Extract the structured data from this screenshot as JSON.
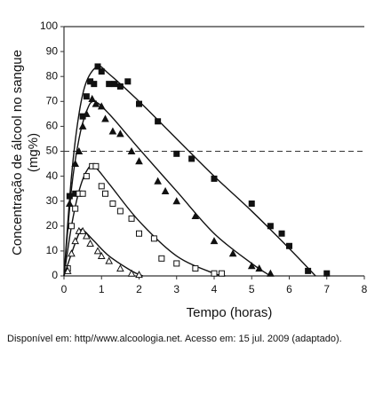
{
  "chart_data": {
    "type": "scatter-fit",
    "ylabel": [
      "Concentração de álcool no sangue",
      "(mg%)"
    ],
    "xlabel": "Tempo (horas)",
    "caption": "Disponível em: http//www.alcoologia.net. Acesso em: 15 jul. 2009 (adaptado).",
    "xlim": [
      0,
      8
    ],
    "xticks": [
      0,
      1,
      2,
      3,
      4,
      5,
      6,
      7,
      8
    ],
    "ylim": [
      0,
      100
    ],
    "yticks": [
      0,
      10,
      20,
      30,
      40,
      50,
      60,
      70,
      80,
      90,
      100
    ],
    "hline": 50,
    "hline_style": "dashed",
    "series": [
      {
        "marker": "square",
        "filled": true,
        "color": "#111111",
        "x": [
          0.15,
          0.3,
          0.5,
          0.6,
          0.7,
          0.8,
          0.9,
          1.0,
          1.2,
          1.35,
          1.5,
          1.7,
          2.0,
          2.5,
          3.0,
          3.4,
          4.0,
          5.0,
          5.5,
          5.8,
          6.0,
          6.5,
          7.0
        ],
        "values": [
          32,
          33,
          64,
          72,
          78,
          77,
          84,
          82,
          77,
          77,
          76,
          78,
          69,
          62,
          49,
          47,
          39,
          29,
          20,
          17,
          12,
          2,
          1
        ],
        "curve_x": [
          0,
          0.2,
          0.4,
          0.6,
          0.9,
          1.2,
          2,
          3,
          4,
          5,
          6,
          6.7
        ],
        "curve_values": [
          0,
          40,
          65,
          78,
          84,
          81,
          70,
          55,
          40,
          26,
          11,
          0
        ]
      },
      {
        "marker": "triangle",
        "filled": true,
        "color": "#111111",
        "x": [
          0.15,
          0.3,
          0.4,
          0.5,
          0.6,
          0.75,
          0.85,
          1.0,
          1.1,
          1.3,
          1.5,
          1.8,
          2.0,
          2.5,
          2.7,
          3.0,
          3.5,
          4.0,
          4.5,
          5.0,
          5.2,
          5.5
        ],
        "values": [
          29,
          45,
          50,
          60,
          65,
          71,
          69,
          68,
          63,
          58,
          57,
          50,
          46,
          38,
          34,
          30,
          24,
          14,
          9,
          4,
          3,
          1
        ],
        "curve_x": [
          0,
          0.2,
          0.4,
          0.6,
          0.8,
          1.2,
          2,
          3,
          4,
          5,
          5.5
        ],
        "curve_values": [
          0,
          35,
          55,
          66,
          70,
          65,
          51,
          34,
          17,
          5,
          0
        ]
      },
      {
        "marker": "square",
        "filled": false,
        "color": "#111111",
        "x": [
          0.1,
          0.2,
          0.3,
          0.4,
          0.5,
          0.6,
          0.75,
          0.85,
          1.0,
          1.1,
          1.3,
          1.5,
          1.8,
          2.0,
          2.4,
          2.6,
          3.0,
          3.5,
          4.0,
          4.2
        ],
        "values": [
          3,
          20,
          27,
          33,
          33,
          40,
          44,
          44,
          36,
          33,
          29,
          26,
          23,
          17,
          15,
          7,
          5,
          3,
          1,
          1
        ],
        "curve_x": [
          0,
          0.2,
          0.4,
          0.6,
          0.8,
          1.2,
          2,
          3,
          4,
          4.3
        ],
        "curve_values": [
          0,
          20,
          34,
          42,
          44,
          37,
          22,
          8,
          1,
          0
        ]
      },
      {
        "marker": "triangle",
        "filled": false,
        "color": "#111111",
        "x": [
          0.1,
          0.2,
          0.3,
          0.4,
          0.5,
          0.6,
          0.7,
          0.9,
          1.0,
          1.2,
          1.5,
          1.8,
          2.0
        ],
        "values": [
          2,
          9,
          14,
          18,
          18,
          16,
          13,
          10,
          8,
          6,
          3,
          1,
          0.5
        ],
        "curve_x": [
          0,
          0.2,
          0.4,
          0.5,
          0.8,
          1.2,
          1.8,
          2.1
        ],
        "curve_values": [
          0,
          9,
          17,
          18.5,
          14,
          8,
          2,
          0
        ]
      }
    ]
  }
}
